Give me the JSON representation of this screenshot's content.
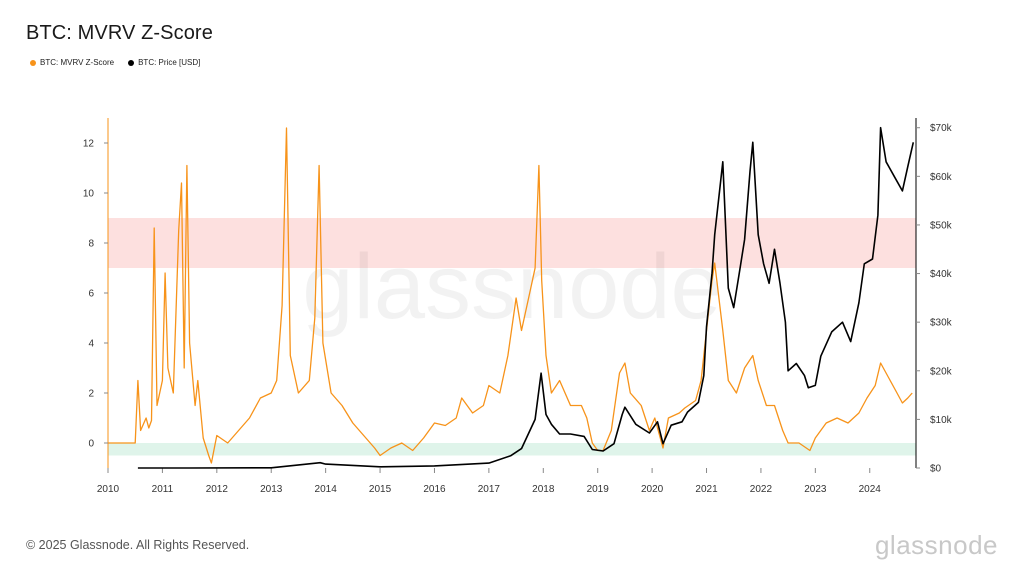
{
  "page": {
    "title": "BTC: MVRV Z-Score",
    "copyright": "© 2025 Glassnode. All Rights Reserved.",
    "brand": "glassnode",
    "watermark": "glassnode"
  },
  "legend": [
    {
      "label": "BTC: MVRV Z-Score",
      "color": "#f7931a"
    },
    {
      "label": "BTC: Price [USD]",
      "color": "#000000"
    }
  ],
  "chart_data": {
    "type": "line",
    "title": "BTC: MVRV Z-Score",
    "xlim": [
      2010.0,
      2024.85
    ],
    "x_ticks": [
      "2010",
      "2011",
      "2012",
      "2013",
      "2014",
      "2015",
      "2016",
      "2017",
      "2018",
      "2019",
      "2020",
      "2021",
      "2022",
      "2023",
      "2024"
    ],
    "y_left": {
      "lim": [
        -1,
        13
      ],
      "ticks": [
        "0",
        "2",
        "4",
        "6",
        "8",
        "10",
        "12"
      ]
    },
    "y_right": {
      "lim": [
        0,
        72000
      ],
      "ticks": [
        "$0",
        "$10k",
        "$20k",
        "$30k",
        "$40k",
        "$50k",
        "$60k",
        "$70k"
      ]
    },
    "bands": [
      {
        "from": 7,
        "to": 9,
        "color": "#fde0df"
      },
      {
        "from": -0.5,
        "to": 0,
        "color": "#dff4ea"
      }
    ],
    "series": [
      {
        "name": "BTC: MVRV Z-Score",
        "axis": "left",
        "color": "#f7931a",
        "points": [
          [
            2010.0,
            0
          ],
          [
            2010.5,
            0
          ],
          [
            2010.55,
            2.5
          ],
          [
            2010.6,
            0.5
          ],
          [
            2010.7,
            1.0
          ],
          [
            2010.75,
            0.6
          ],
          [
            2010.8,
            0.9
          ],
          [
            2010.85,
            8.6
          ],
          [
            2010.9,
            1.5
          ],
          [
            2011.0,
            2.5
          ],
          [
            2011.05,
            6.8
          ],
          [
            2011.1,
            3.0
          ],
          [
            2011.2,
            2.0
          ],
          [
            2011.3,
            8.5
          ],
          [
            2011.35,
            10.4
          ],
          [
            2011.4,
            3.0
          ],
          [
            2011.45,
            11.1
          ],
          [
            2011.5,
            4.0
          ],
          [
            2011.6,
            1.5
          ],
          [
            2011.65,
            2.5
          ],
          [
            2011.75,
            0.2
          ],
          [
            2011.85,
            -0.5
          ],
          [
            2011.9,
            -0.8
          ],
          [
            2012.0,
            0.3
          ],
          [
            2012.2,
            0
          ],
          [
            2012.4,
            0.5
          ],
          [
            2012.6,
            1.0
          ],
          [
            2012.8,
            1.8
          ],
          [
            2013.0,
            2.0
          ],
          [
            2013.1,
            2.5
          ],
          [
            2013.2,
            5.5
          ],
          [
            2013.28,
            12.6
          ],
          [
            2013.35,
            3.5
          ],
          [
            2013.5,
            2.0
          ],
          [
            2013.7,
            2.5
          ],
          [
            2013.8,
            5.0
          ],
          [
            2013.88,
            11.1
          ],
          [
            2013.95,
            4.0
          ],
          [
            2014.1,
            2.0
          ],
          [
            2014.3,
            1.5
          ],
          [
            2014.5,
            0.8
          ],
          [
            2014.7,
            0.3
          ],
          [
            2014.9,
            -0.2
          ],
          [
            2015.0,
            -0.5
          ],
          [
            2015.2,
            -0.2
          ],
          [
            2015.4,
            0
          ],
          [
            2015.6,
            -0.3
          ],
          [
            2015.8,
            0.2
          ],
          [
            2016.0,
            0.8
          ],
          [
            2016.2,
            0.7
          ],
          [
            2016.4,
            1.0
          ],
          [
            2016.5,
            1.8
          ],
          [
            2016.7,
            1.2
          ],
          [
            2016.9,
            1.5
          ],
          [
            2017.0,
            2.3
          ],
          [
            2017.2,
            2.0
          ],
          [
            2017.35,
            3.5
          ],
          [
            2017.5,
            5.8
          ],
          [
            2017.6,
            4.5
          ],
          [
            2017.75,
            6.0
          ],
          [
            2017.85,
            7.0
          ],
          [
            2017.92,
            11.1
          ],
          [
            2017.97,
            6.5
          ],
          [
            2018.05,
            3.5
          ],
          [
            2018.15,
            2.0
          ],
          [
            2018.3,
            2.5
          ],
          [
            2018.5,
            1.5
          ],
          [
            2018.7,
            1.5
          ],
          [
            2018.8,
            1.0
          ],
          [
            2018.9,
            0
          ],
          [
            2019.0,
            -0.3
          ],
          [
            2019.1,
            -0.3
          ],
          [
            2019.25,
            0.5
          ],
          [
            2019.4,
            2.8
          ],
          [
            2019.5,
            3.2
          ],
          [
            2019.6,
            2.0
          ],
          [
            2019.8,
            1.5
          ],
          [
            2019.95,
            0.5
          ],
          [
            2020.05,
            1.0
          ],
          [
            2020.2,
            -0.2
          ],
          [
            2020.3,
            1.0
          ],
          [
            2020.5,
            1.2
          ],
          [
            2020.6,
            1.4
          ],
          [
            2020.8,
            1.7
          ],
          [
            2020.9,
            2.5
          ],
          [
            2021.0,
            4.5
          ],
          [
            2021.1,
            6.5
          ],
          [
            2021.15,
            7.2
          ],
          [
            2021.3,
            4.5
          ],
          [
            2021.4,
            2.5
          ],
          [
            2021.55,
            2.0
          ],
          [
            2021.7,
            3.0
          ],
          [
            2021.85,
            3.5
          ],
          [
            2021.95,
            2.5
          ],
          [
            2022.1,
            1.5
          ],
          [
            2022.25,
            1.5
          ],
          [
            2022.4,
            0.5
          ],
          [
            2022.5,
            0
          ],
          [
            2022.7,
            0
          ],
          [
            2022.9,
            -0.3
          ],
          [
            2023.0,
            0.2
          ],
          [
            2023.2,
            0.8
          ],
          [
            2023.4,
            1.0
          ],
          [
            2023.6,
            0.8
          ],
          [
            2023.8,
            1.2
          ],
          [
            2023.95,
            1.8
          ],
          [
            2024.1,
            2.3
          ],
          [
            2024.2,
            3.2
          ],
          [
            2024.35,
            2.6
          ],
          [
            2024.5,
            2.0
          ],
          [
            2024.6,
            1.6
          ],
          [
            2024.7,
            1.8
          ],
          [
            2024.78,
            2.0
          ]
        ]
      },
      {
        "name": "BTC: Price [USD]",
        "axis": "right",
        "color": "#000000",
        "points": [
          [
            2010.55,
            0
          ],
          [
            2011.5,
            0
          ],
          [
            2013.0,
            50
          ],
          [
            2013.9,
            1100
          ],
          [
            2014.0,
            800
          ],
          [
            2015.0,
            250
          ],
          [
            2016.0,
            430
          ],
          [
            2017.0,
            1000
          ],
          [
            2017.4,
            2500
          ],
          [
            2017.6,
            4000
          ],
          [
            2017.85,
            10000
          ],
          [
            2017.96,
            19500
          ],
          [
            2018.05,
            11000
          ],
          [
            2018.15,
            9000
          ],
          [
            2018.3,
            7000
          ],
          [
            2018.5,
            7000
          ],
          [
            2018.75,
            6500
          ],
          [
            2018.9,
            3800
          ],
          [
            2019.1,
            3500
          ],
          [
            2019.3,
            5000
          ],
          [
            2019.45,
            11000
          ],
          [
            2019.5,
            12500
          ],
          [
            2019.7,
            9000
          ],
          [
            2019.95,
            7200
          ],
          [
            2020.1,
            9500
          ],
          [
            2020.2,
            5000
          ],
          [
            2020.35,
            8800
          ],
          [
            2020.55,
            9500
          ],
          [
            2020.65,
            11500
          ],
          [
            2020.85,
            13500
          ],
          [
            2020.95,
            19000
          ],
          [
            2021.0,
            29000
          ],
          [
            2021.1,
            40000
          ],
          [
            2021.15,
            48000
          ],
          [
            2021.25,
            58000
          ],
          [
            2021.3,
            63000
          ],
          [
            2021.4,
            37000
          ],
          [
            2021.5,
            33000
          ],
          [
            2021.6,
            40000
          ],
          [
            2021.7,
            47000
          ],
          [
            2021.8,
            61000
          ],
          [
            2021.85,
            67000
          ],
          [
            2021.95,
            48000
          ],
          [
            2022.05,
            42000
          ],
          [
            2022.15,
            38000
          ],
          [
            2022.25,
            45000
          ],
          [
            2022.35,
            38000
          ],
          [
            2022.45,
            30000
          ],
          [
            2022.5,
            20000
          ],
          [
            2022.65,
            21500
          ],
          [
            2022.8,
            19000
          ],
          [
            2022.87,
            16500
          ],
          [
            2023.0,
            17000
          ],
          [
            2023.1,
            23000
          ],
          [
            2023.3,
            28000
          ],
          [
            2023.5,
            30000
          ],
          [
            2023.65,
            26000
          ],
          [
            2023.8,
            34000
          ],
          [
            2023.9,
            42000
          ],
          [
            2024.05,
            43000
          ],
          [
            2024.15,
            52000
          ],
          [
            2024.2,
            70000
          ],
          [
            2024.3,
            63000
          ],
          [
            2024.45,
            60000
          ],
          [
            2024.6,
            57000
          ],
          [
            2024.7,
            62000
          ],
          [
            2024.8,
            67000
          ]
        ]
      }
    ]
  }
}
